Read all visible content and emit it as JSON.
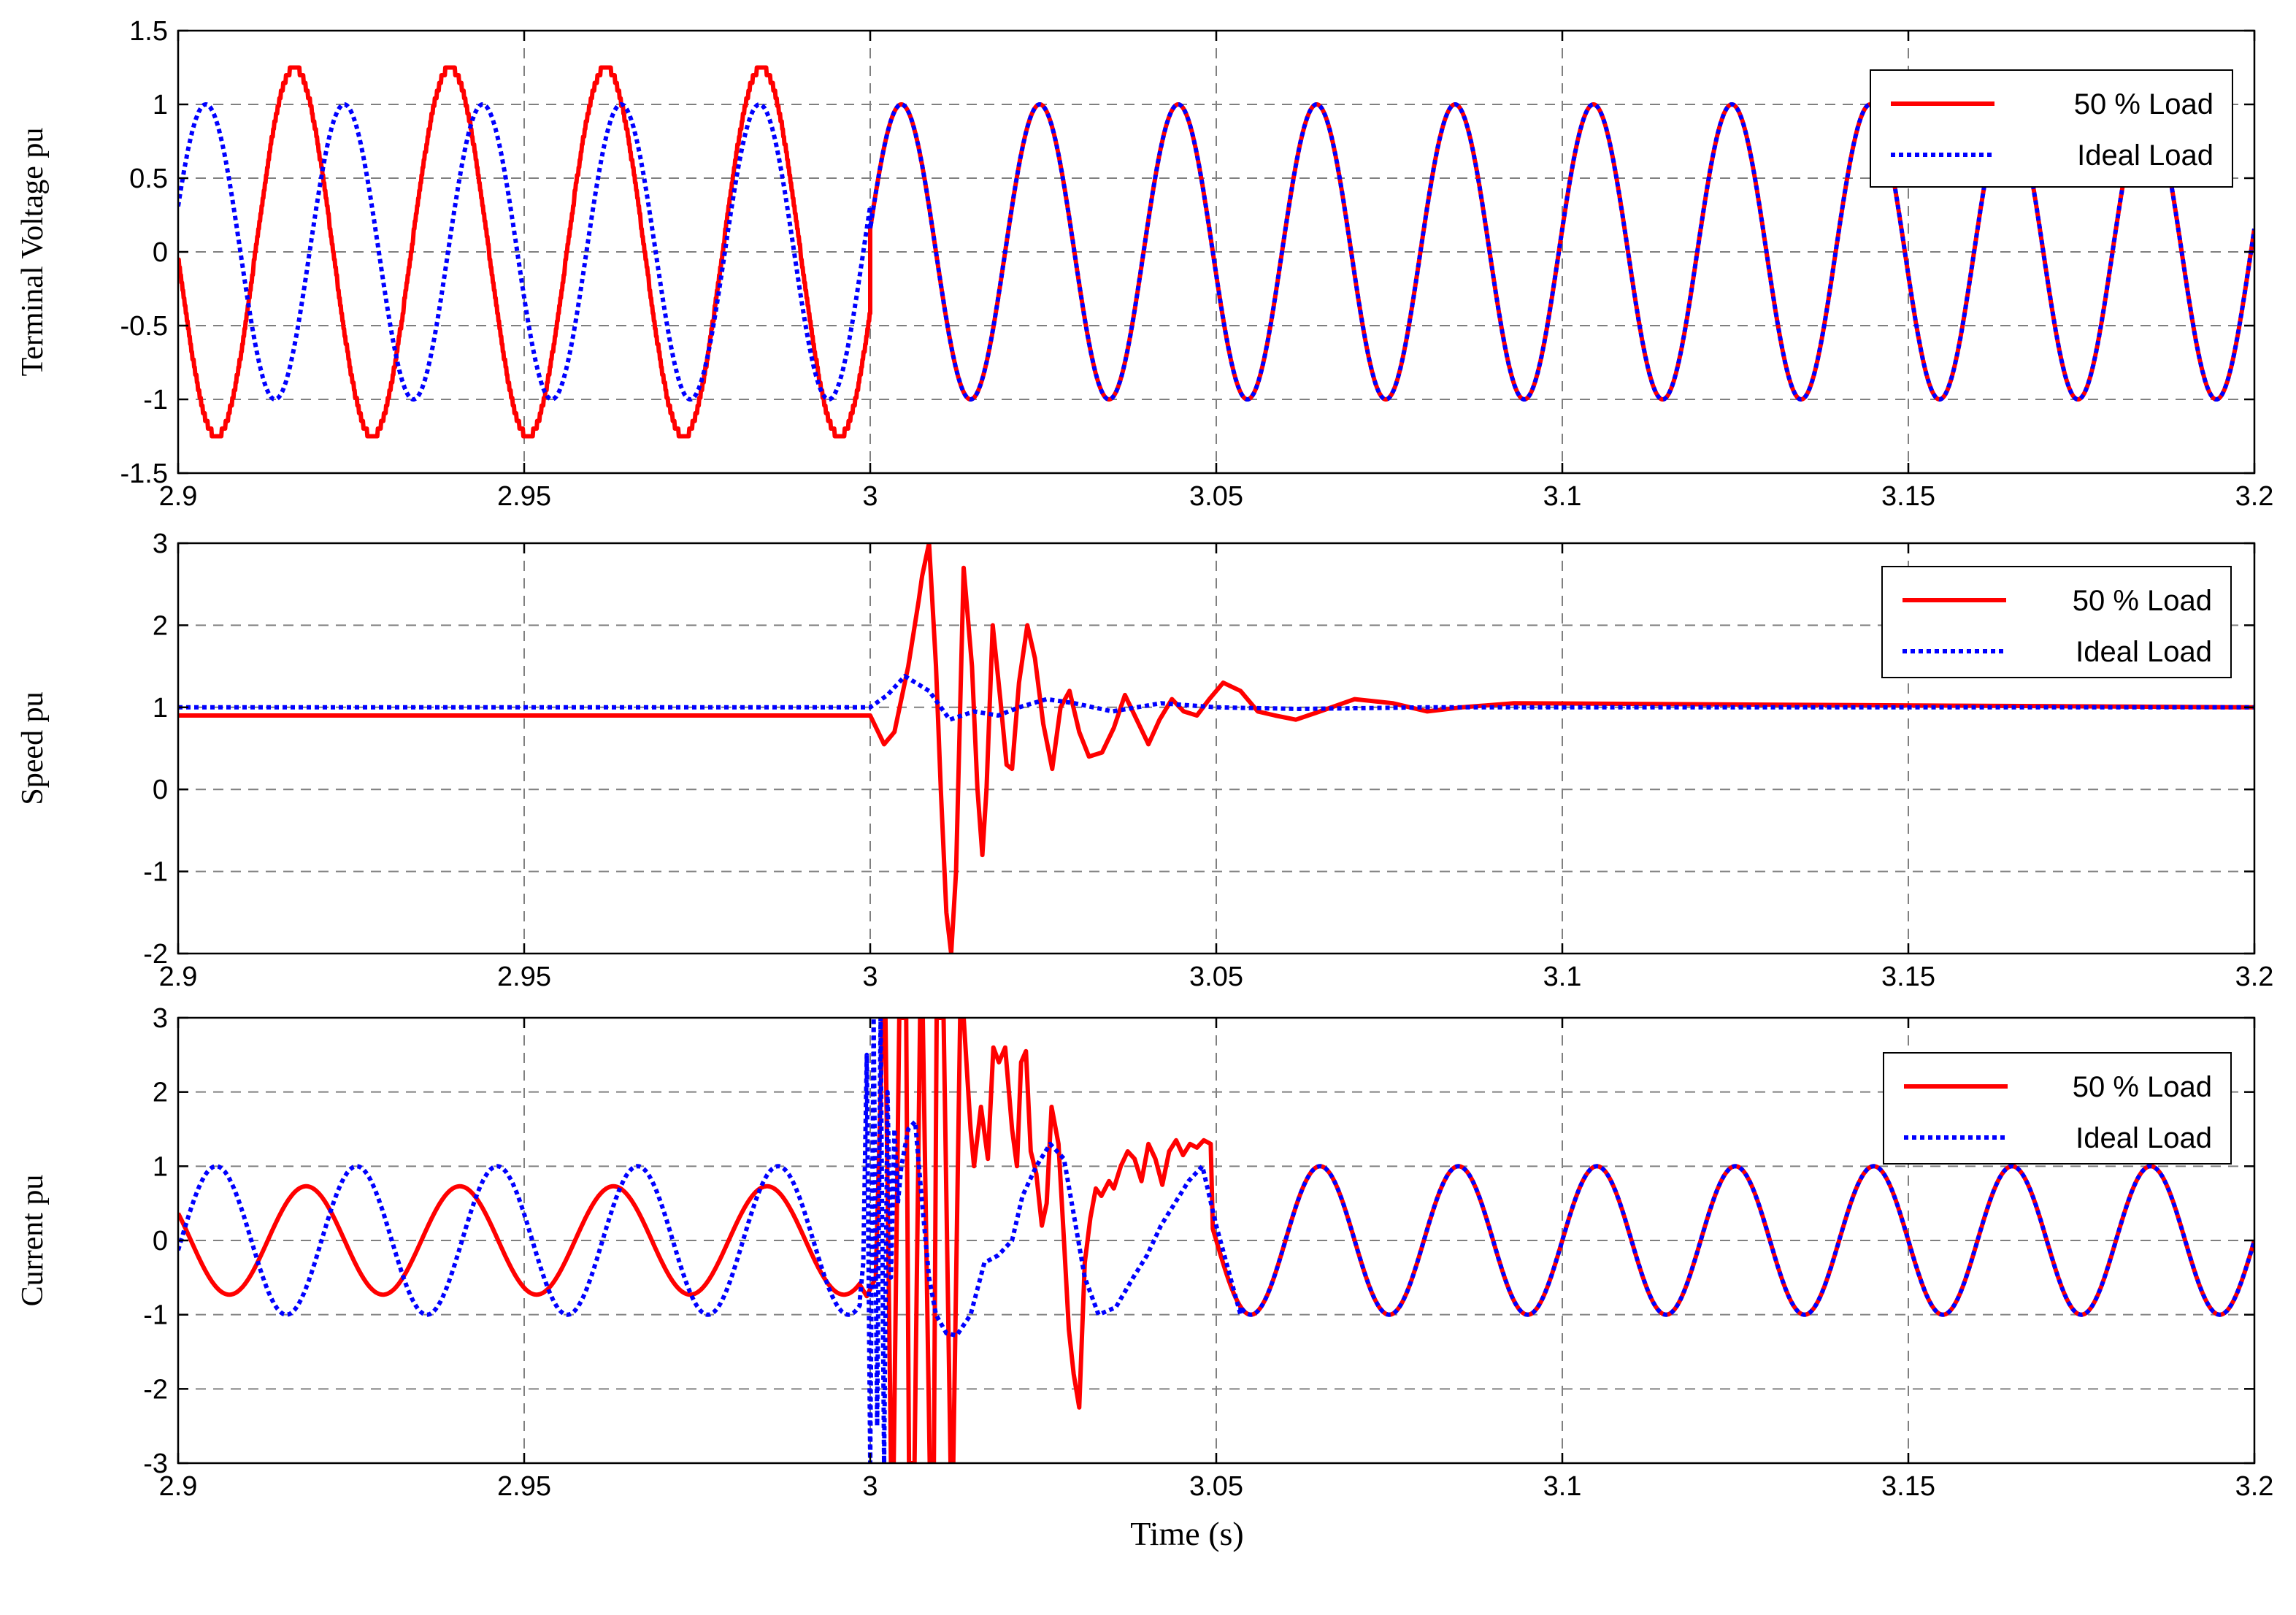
{
  "figure": {
    "xlabel": "Time (s)"
  },
  "chart_data": [
    {
      "type": "line",
      "ylabel": "Terminal Voltage pu",
      "xlim": [
        2.9,
        3.2
      ],
      "ylim": [
        -1.5,
        1.5
      ],
      "xticks": [
        2.9,
        2.95,
        3,
        3.05,
        3.1,
        3.15,
        3.2
      ],
      "xtick_labels": [
        "2.9",
        "2.95",
        "3",
        "3.05",
        "3.1",
        "3.15",
        "3.2"
      ],
      "yticks": [
        -1.5,
        -1,
        -0.5,
        0,
        0.5,
        1,
        1.5
      ],
      "ytick_labels": [
        "-1.5",
        "-1",
        "-0.5",
        "0",
        "0.5",
        "1",
        "1.5"
      ],
      "grid": true,
      "legend_position": "top-right",
      "series": [
        {
          "name": "50 % Load",
          "color": "#ff0000",
          "style": "solid",
          "shape": "sinusoid",
          "segments": [
            {
              "t0": 2.9,
              "t1": 3.0,
              "amplitude": 1.25,
              "period": 0.0225,
              "peak_time": 2.9168,
              "steps": 24
            },
            {
              "t0": 3.0,
              "t1": 3.2,
              "amplitude": 1.0,
              "period": 0.02,
              "peak_time": 3.0045,
              "steps": 0
            }
          ]
        },
        {
          "name": "Ideal  Load",
          "color": "#0000ff",
          "style": "dotted",
          "shape": "sinusoid",
          "segments": [
            {
              "t0": 2.9,
              "t1": 3.0,
              "amplitude": 1.0,
              "period": 0.02,
              "peak_time": 2.904,
              "steps": 0
            },
            {
              "t0": 3.0,
              "t1": 3.2,
              "amplitude": 1.0,
              "period": 0.02,
              "peak_time": 3.0045,
              "steps": 0
            }
          ]
        }
      ]
    },
    {
      "type": "line",
      "ylabel": "Speed pu",
      "xlim": [
        2.9,
        3.2
      ],
      "ylim": [
        -2,
        3
      ],
      "xticks": [
        2.9,
        2.95,
        3,
        3.05,
        3.1,
        3.15,
        3.2
      ],
      "xtick_labels": [
        "2.9",
        "2.95",
        "3",
        "3.05",
        "3.1",
        "3.15",
        "3.2"
      ],
      "yticks": [
        -2,
        -1,
        0,
        1,
        2,
        3
      ],
      "ytick_labels": [
        "-2",
        "-1",
        "0",
        "1",
        "2",
        "3"
      ],
      "grid": true,
      "legend_position": "top-right",
      "series": [
        {
          "name": "50 % Load",
          "color": "#ff0000",
          "style": "solid",
          "shape": "points",
          "x": [
            2.9,
            2.9995,
            3.0,
            3.002,
            3.0035,
            3.0055,
            3.007,
            3.0075,
            3.0085,
            3.0095,
            3.0102,
            3.011,
            3.0117,
            3.0124,
            3.0135,
            3.0147,
            3.0155,
            3.0162,
            3.0168,
            3.0177,
            3.0188,
            3.0197,
            3.0205,
            3.0215,
            3.0227,
            3.0238,
            3.025,
            3.0263,
            3.0275,
            3.0288,
            3.0302,
            3.0316,
            3.0335,
            3.0352,
            3.0368,
            3.0385,
            3.0402,
            3.0418,
            3.0436,
            3.0453,
            3.0472,
            3.049,
            3.051,
            3.0535,
            3.056,
            3.0585,
            3.0615,
            3.065,
            3.07,
            3.0755,
            3.0805,
            3.0855,
            3.093,
            3.2
          ],
          "y": [
            0.9,
            0.9,
            0.9,
            0.55,
            0.7,
            1.5,
            2.3,
            2.6,
            3.0,
            1.5,
            0.0,
            -1.5,
            -2.0,
            -1.0,
            2.7,
            1.5,
            0.0,
            -0.8,
            0.0,
            2.0,
            1.1,
            0.3,
            0.25,
            1.3,
            2.0,
            1.6,
            0.8,
            0.25,
            1.0,
            1.2,
            0.7,
            0.4,
            0.45,
            0.75,
            1.15,
            0.85,
            0.55,
            0.85,
            1.1,
            0.95,
            0.9,
            1.1,
            1.3,
            1.2,
            0.95,
            0.9,
            0.85,
            0.95,
            1.1,
            1.05,
            0.95,
            1.0,
            1.05,
            1.0
          ]
        },
        {
          "name": "Ideal Load",
          "color": "#0000ff",
          "style": "dotted",
          "shape": "points",
          "x": [
            2.9,
            3.0,
            3.0025,
            3.005,
            3.0085,
            3.0115,
            3.015,
            3.0185,
            3.0215,
            3.0255,
            3.0295,
            3.035,
            3.042,
            3.05,
            3.062,
            3.08,
            3.2
          ],
          "y": [
            1.0,
            1.0,
            1.15,
            1.38,
            1.2,
            0.85,
            0.95,
            0.9,
            1.0,
            1.1,
            1.05,
            0.95,
            1.05,
            1.0,
            0.98,
            1.0,
            1.0
          ]
        }
      ]
    },
    {
      "type": "line",
      "ylabel": "Current pu",
      "xlim": [
        2.9,
        3.2
      ],
      "ylim": [
        -3,
        3
      ],
      "xticks": [
        2.9,
        2.95,
        3,
        3.05,
        3.1,
        3.15,
        3.2
      ],
      "xtick_labels": [
        "2.9",
        "2.95",
        "3",
        "3.05",
        "3.1",
        "3.15",
        "3.2"
      ],
      "yticks": [
        -3,
        -2,
        -1,
        0,
        1,
        2,
        3
      ],
      "ytick_labels": [
        "-3",
        "-2",
        "-1",
        "0",
        "1",
        "2",
        "3"
      ],
      "grid": true,
      "legend_position": "top-right",
      "series": [
        {
          "name": "50 % Load",
          "color": "#ff0000",
          "style": "solid",
          "shape": "pieces",
          "pieces": [
            {
              "kind": "sine",
              "t0": 2.9,
              "t1": 2.9985,
              "amplitude": 0.73,
              "period": 0.0222,
              "peak_time": 2.9185
            },
            {
              "kind": "points",
              "x": [
                2.9985,
                2.9995,
                3.0008,
                3.0018,
                3.0022,
                3.003,
                3.0034,
                3.0042,
                3.0052,
                3.0056,
                3.0064,
                3.0072,
                3.0076,
                3.0086,
                3.0092,
                3.0096,
                3.0106,
                3.0116,
                3.012,
                3.013,
                3.0135,
                3.0145,
                3.015,
                3.016,
                3.017,
                3.0178,
                3.0186,
                3.0195,
                3.0205,
                3.0212,
                3.0218,
                3.0225,
                3.0232,
                3.024,
                3.0248,
                3.0255,
                3.0262,
                3.0272,
                3.028,
                3.0287,
                3.0294,
                3.0302,
                3.031,
                3.0318,
                3.0326,
                3.0334,
                3.0345,
                3.0352,
                3.0362,
                3.0372,
                3.0382,
                3.0392,
                3.0402,
                3.0412,
                3.0422,
                3.0432,
                3.0442,
                3.0452,
                3.0462,
                3.0472,
                3.0482,
                3.0492
              ],
              "y": [
                -0.6,
                -0.75,
                -0.5,
                3.0,
                3.0,
                -3.0,
                -3.0,
                3.0,
                3.0,
                -3.0,
                -3.0,
                3.0,
                3.0,
                -3.0,
                -3.0,
                3.0,
                3.0,
                -3.0,
                -3.0,
                3.0,
                3.0,
                1.5,
                1.0,
                1.8,
                1.1,
                2.6,
                2.4,
                2.6,
                1.5,
                1.0,
                2.4,
                2.55,
                1.2,
                0.9,
                0.2,
                0.5,
                1.8,
                1.3,
                0.0,
                -1.2,
                -1.8,
                -2.25,
                -0.3,
                0.3,
                0.7,
                0.6,
                0.8,
                0.7,
                1.0,
                1.2,
                1.1,
                0.8,
                1.3,
                1.1,
                0.75,
                1.2,
                1.35,
                1.15,
                1.3,
                1.25,
                1.35,
                1.3
              ]
            },
            {
              "kind": "sine",
              "t0": 3.0495,
              "t1": 3.2,
              "amplitude": 1.0,
              "period": 0.02,
              "peak_time": 3.065
            }
          ]
        },
        {
          "name": "Ideal Load",
          "color": "#0000ff",
          "style": "dotted",
          "shape": "pieces",
          "pieces": [
            {
              "kind": "sine",
              "t0": 2.9,
              "t1": 2.9985,
              "amplitude": 1.0,
              "period": 0.0203,
              "peak_time": 2.9055
            },
            {
              "kind": "points",
              "x": [
                2.9985,
                2.999,
                2.9995,
                3.0,
                3.0005,
                3.001,
                3.0015,
                3.002,
                3.0025,
                3.003,
                3.0035,
                3.004,
                3.0045,
                3.0055,
                3.0065,
                3.0075,
                3.0085,
                3.0095,
                3.011,
                3.0125,
                3.0145,
                3.0165,
                3.0185,
                3.0205,
                3.022,
                3.024,
                3.026,
                3.028,
                3.0295,
                3.031,
                3.033,
                3.0355,
                3.038,
                3.04,
                3.042,
                3.044,
                3.046,
                3.048,
                3.05,
                3.0535
              ],
              "y": [
                -0.8,
                -0.3,
                2.5,
                -3.0,
                3.0,
                -2.5,
                3.0,
                -3.0,
                2.0,
                -0.5,
                1.5,
                0.5,
                1.0,
                1.5,
                1.6,
                0.5,
                -0.5,
                -1.0,
                -1.25,
                -1.28,
                -1.0,
                -0.3,
                -0.2,
                0.0,
                0.6,
                1.0,
                1.3,
                1.1,
                0.3,
                -0.5,
                -1.0,
                -0.9,
                -0.5,
                -0.2,
                0.2,
                0.5,
                0.8,
                1.0,
                0.2,
                -1.0
              ]
            },
            {
              "kind": "sine",
              "t0": 3.0535,
              "t1": 3.2,
              "amplitude": 1.0,
              "period": 0.02,
              "peak_time": 3.065
            }
          ]
        }
      ]
    }
  ]
}
